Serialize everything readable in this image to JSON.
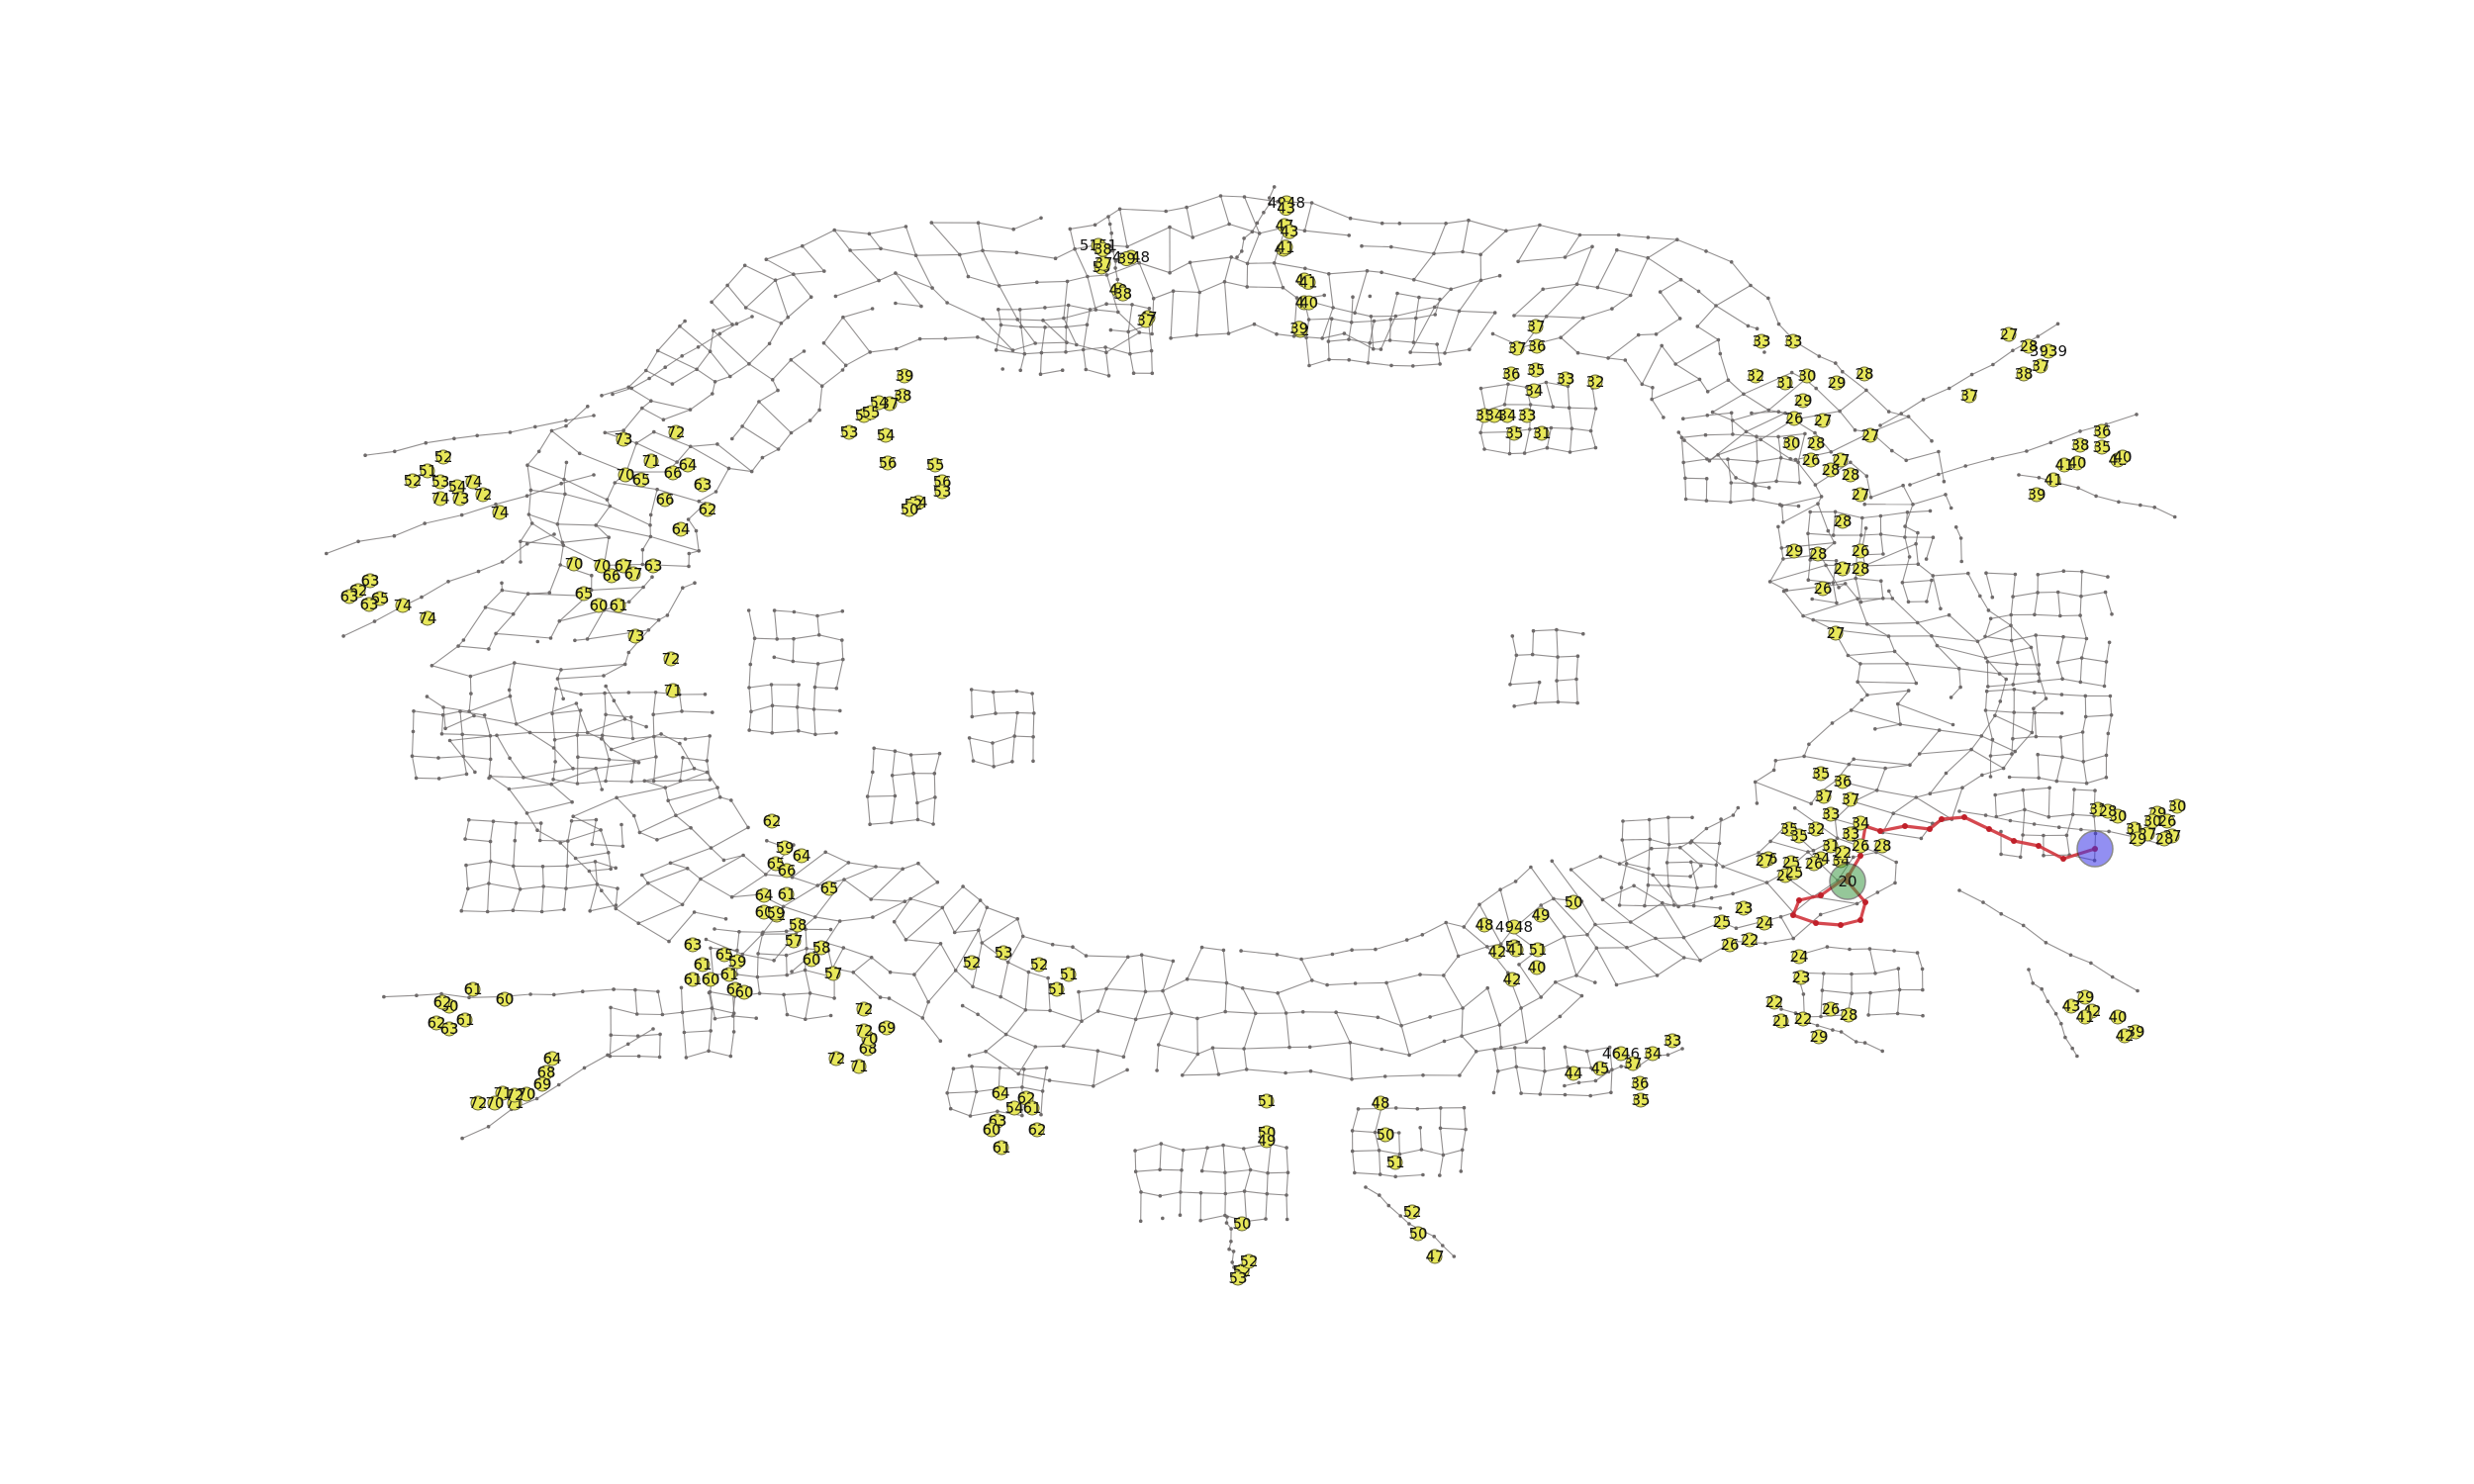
{
  "colors": {
    "edge": "#6e6a6a",
    "node": "#6e6a6a",
    "path": "#d0343c",
    "label_fill": "#e8e85a",
    "start": "#3f9a46",
    "goal": "#3a35e8"
  },
  "graph": {
    "start_label": "20",
    "labels": [
      "4948",
      "47",
      "46",
      "44",
      "43",
      "42",
      "5151",
      "50",
      "4948",
      "49",
      "47",
      "37",
      "36",
      "37",
      "36",
      "35",
      "35",
      "34",
      "33",
      "34",
      "33",
      "32",
      "31",
      "35",
      "34",
      "33",
      "33",
      "32",
      "31",
      "30",
      "29",
      "28",
      "29",
      "27",
      "26",
      "30",
      "28",
      "27",
      "26",
      "27",
      "28",
      "28",
      "27",
      "28",
      "26",
      "29",
      "28",
      "27",
      "28",
      "26",
      "27",
      "27",
      "28",
      "3939",
      "38",
      "37",
      "37",
      "36",
      "38",
      "35",
      "41",
      "40",
      "41",
      "40",
      "41",
      "39",
      "39",
      "38",
      "37",
      "54",
      "54",
      "53",
      "54",
      "55",
      "56",
      "55",
      "56",
      "54",
      "53",
      "52",
      "50",
      "52",
      "51",
      "52",
      "53",
      "54",
      "74",
      "74",
      "73",
      "72",
      "74",
      "73",
      "72",
      "71",
      "70",
      "66",
      "64",
      "65",
      "63",
      "62",
      "66",
      "64",
      "63",
      "62",
      "65",
      "63",
      "63",
      "74",
      "74",
      "73",
      "72",
      "71",
      "70",
      "70",
      "67",
      "66",
      "67",
      "63",
      "65",
      "60",
      "61",
      "62",
      "59",
      "65",
      "64",
      "66",
      "61",
      "64",
      "65",
      "60",
      "62",
      "63",
      "61",
      "65",
      "61",
      "60",
      "61",
      "59",
      "61",
      "60",
      "59",
      "58",
      "57",
      "58",
      "60",
      "57",
      "60",
      "61",
      "60",
      "62",
      "61",
      "63",
      "62",
      "64",
      "68",
      "69",
      "70",
      "71",
      "72",
      "72",
      "71",
      "70",
      "72",
      "68",
      "69",
      "70",
      "71",
      "72",
      "72",
      "64",
      "63",
      "62",
      "61",
      "60",
      "61",
      "62",
      "54",
      "53",
      "52",
      "52",
      "51",
      "51",
      "50",
      "52",
      "53",
      "52",
      "51",
      "50",
      "49",
      "48",
      "50",
      "51",
      "52",
      "50",
      "47",
      "48",
      "4948",
      "49",
      "50",
      "51",
      "51",
      "40",
      "41",
      "42",
      "42",
      "44",
      "45",
      "4646",
      "37",
      "36",
      "35",
      "34",
      "33",
      "35",
      "36",
      "37",
      "37",
      "33",
      "34",
      "35",
      "35",
      "32",
      "33",
      "31",
      "34",
      "26",
      "25",
      "24",
      "26",
      "28",
      "27",
      "26",
      "25",
      "26",
      "22",
      "23",
      "24",
      "25",
      "22",
      "26",
      "24",
      "23",
      "22",
      "21",
      "22",
      "26",
      "28",
      "29",
      "30",
      "29",
      "30",
      "31",
      "30",
      "31",
      "26",
      "27",
      "27",
      "28",
      "29",
      "28",
      "29",
      "43",
      "42",
      "41",
      "40",
      "39",
      "42",
      "43",
      "43",
      "41",
      "41",
      "40",
      "39",
      "38",
      "37",
      "39",
      "38",
      "37"
    ]
  }
}
